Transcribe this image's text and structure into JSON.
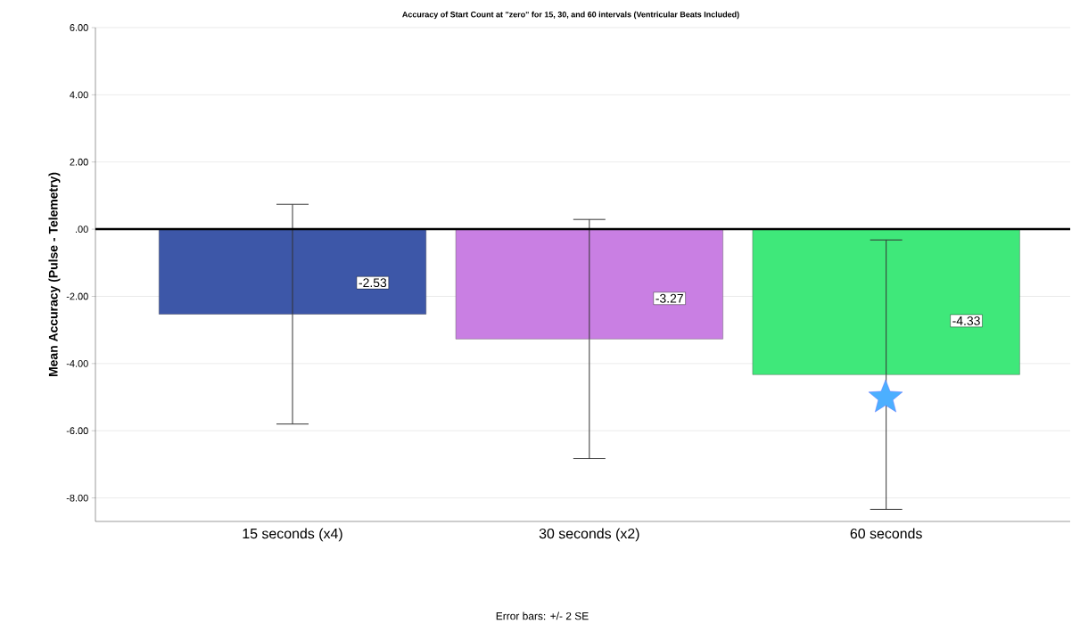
{
  "chart_data": {
    "type": "bar",
    "title": "Accuracy of Start Count at \"zero\" for 15, 30, and 60 intervals (Ventricular Beats Included)",
    "ylabel": "Mean Accuracy (Pulse - Telemetry)",
    "categories": [
      "15 seconds (x4)",
      "30 seconds (x2)",
      "60 seconds"
    ],
    "values": [
      -2.53,
      -3.27,
      -4.33
    ],
    "colors": [
      "#3d57a8",
      "#c97fe3",
      "#3fe87a"
    ],
    "errors": [
      3.27,
      3.56,
      4.01
    ],
    "data_labels": true,
    "ylim": [
      -8.7,
      6
    ],
    "yticks": [
      {
        "value": -8,
        "label": "-8.00"
      },
      {
        "value": -6,
        "label": "-6.00"
      },
      {
        "value": -4,
        "label": "-4.00"
      },
      {
        "value": -2,
        "label": "-2.00"
      },
      {
        "value": 0,
        "label": ".00"
      },
      {
        "value": 2,
        "label": "2.00"
      },
      {
        "value": 4,
        "label": "4.00"
      },
      {
        "value": 6,
        "label": "6.00"
      }
    ],
    "grid": "y",
    "ref_lines": [
      {
        "axis": "y",
        "value": 0,
        "color": "#000000"
      }
    ],
    "annotations": [
      "Error bars: +/- 2 SE"
    ]
  }
}
